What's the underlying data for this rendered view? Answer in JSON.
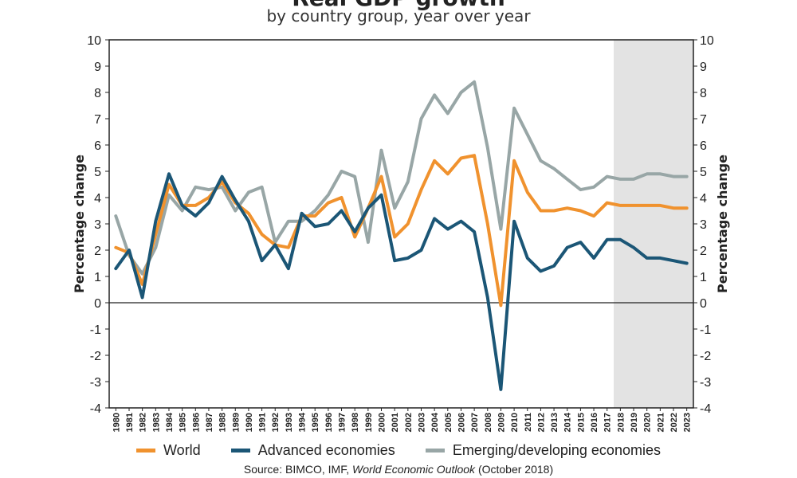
{
  "chart_data": {
    "type": "line",
    "title": "Real GDP growth",
    "subtitle": "by country group, year over year",
    "ylabel_left": "Percentage change",
    "ylabel_right": "Percentage change",
    "ylim": [
      -4,
      10
    ],
    "yticks": [
      "10",
      "9",
      "8",
      "7",
      "6",
      "5",
      "4",
      "3",
      "2",
      "1",
      "0",
      "-1",
      "-2",
      "-3",
      "-4"
    ],
    "x": [
      "1980",
      "1981",
      "1982",
      "1983",
      "1984",
      "1985",
      "1986",
      "1987",
      "1988",
      "1989",
      "1990",
      "1991",
      "1992",
      "1993",
      "1994",
      "1995",
      "1996",
      "1997",
      "1998",
      "1999",
      "2000",
      "2001",
      "2002",
      "2003",
      "2004",
      "2005",
      "2006",
      "2007",
      "2008",
      "2009",
      "2010",
      "2011",
      "2012",
      "2013",
      "2014",
      "2015",
      "2016",
      "2017",
      "2018",
      "2019",
      "2020",
      "2021",
      "2022",
      "2023"
    ],
    "forecast_start": "2018",
    "series": [
      {
        "name": "World",
        "color": "#f0922e",
        "values": [
          2.1,
          1.9,
          0.7,
          2.6,
          4.5,
          3.7,
          3.7,
          4.0,
          4.6,
          3.8,
          3.4,
          2.6,
          2.2,
          2.1,
          3.3,
          3.3,
          3.8,
          4.0,
          2.5,
          3.6,
          4.8,
          2.5,
          3.0,
          4.3,
          5.4,
          4.9,
          5.5,
          5.6,
          3.0,
          -0.1,
          5.4,
          4.2,
          3.5,
          3.5,
          3.6,
          3.5,
          3.3,
          3.8,
          3.7,
          3.7,
          3.7,
          3.7,
          3.6,
          3.6
        ]
      },
      {
        "name": "Advanced economies",
        "color": "#1b5676",
        "values": [
          1.3,
          2.0,
          0.2,
          3.1,
          4.9,
          3.7,
          3.3,
          3.8,
          4.8,
          3.9,
          3.1,
          1.6,
          2.2,
          1.3,
          3.4,
          2.9,
          3.0,
          3.5,
          2.7,
          3.6,
          4.1,
          1.6,
          1.7,
          2.0,
          3.2,
          2.8,
          3.1,
          2.7,
          0.2,
          -3.3,
          3.1,
          1.7,
          1.2,
          1.4,
          2.1,
          2.3,
          1.7,
          2.4,
          2.4,
          2.1,
          1.7,
          1.7,
          1.6,
          1.5
        ]
      },
      {
        "name": "Emerging/developing economies",
        "color": "#98a6a6",
        "values": [
          3.3,
          1.8,
          1.1,
          2.1,
          4.1,
          3.5,
          4.4,
          4.3,
          4.4,
          3.5,
          4.2,
          4.4,
          2.3,
          3.1,
          3.1,
          3.5,
          4.1,
          5.0,
          4.8,
          2.3,
          5.8,
          3.6,
          4.6,
          7.0,
          7.9,
          7.2,
          8.0,
          8.4,
          5.9,
          2.8,
          7.4,
          6.4,
          5.4,
          5.1,
          4.7,
          4.3,
          4.4,
          4.8,
          4.7,
          4.7,
          4.9,
          4.9,
          4.8,
          4.8
        ]
      }
    ],
    "grid": false,
    "legend": "bottom",
    "source_prefix": "Source: BIMCO, IMF, ",
    "source_italic": "World Economic Outlook",
    "source_suffix": " (October 2018)"
  }
}
